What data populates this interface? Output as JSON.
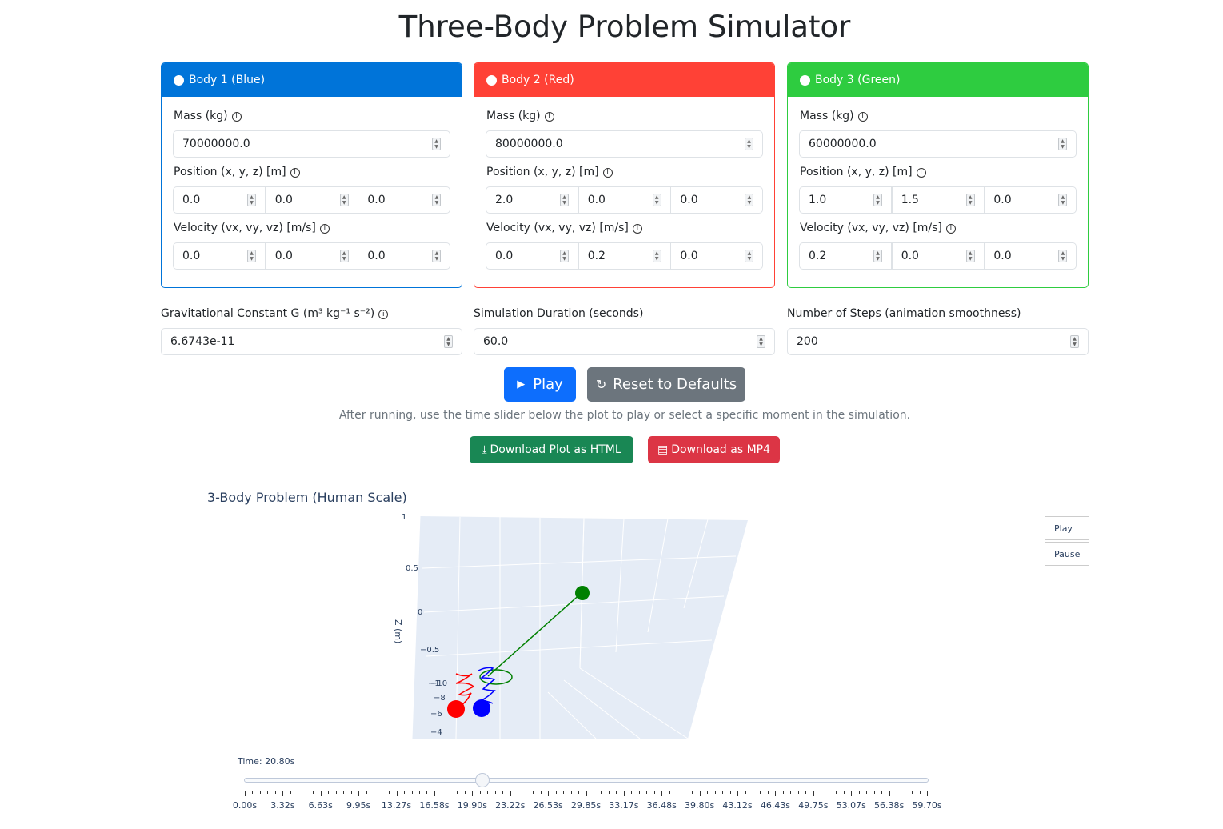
{
  "app": {
    "title": "Three-Body Problem Simulator"
  },
  "bodies": [
    {
      "header": "Body 1 (Blue)",
      "color": "#0d6efd",
      "header_bg": "#0074d9",
      "mass_label": "Mass (kg)",
      "mass": "70000000.0",
      "pos_label": "Position (x, y, z) [m]",
      "pos": [
        "0.0",
        "0.0",
        "0.0"
      ],
      "vel_label": "Velocity (vx, vy, vz) [m/s]",
      "vel": [
        "0.0",
        "0.0",
        "0.0"
      ]
    },
    {
      "header": "Body 2 (Red)",
      "color": "#ff4136",
      "header_bg": "#ff4136",
      "mass_label": "Mass (kg)",
      "mass": "80000000.0",
      "pos_label": "Position (x, y, z) [m]",
      "pos": [
        "2.0",
        "0.0",
        "0.0"
      ],
      "vel_label": "Velocity (vx, vy, vz) [m/s]",
      "vel": [
        "0.0",
        "0.2",
        "0.0"
      ]
    },
    {
      "header": "Body 3 (Green)",
      "color": "#2ecc40",
      "header_bg": "#2ecc40",
      "mass_label": "Mass (kg)",
      "mass": "60000000.0",
      "pos_label": "Position (x, y, z) [m]",
      "pos": [
        "1.0",
        "1.5",
        "0.0"
      ],
      "vel_label": "Velocity (vx, vy, vz) [m/s]",
      "vel": [
        "0.2",
        "0.0",
        "0.0"
      ]
    }
  ],
  "params": {
    "g_label": "Gravitational Constant G (m³ kg⁻¹ s⁻²)",
    "g_value": "6.6743e-11",
    "duration_label": "Simulation Duration (seconds)",
    "duration_value": "60.0",
    "steps_label": "Number of Steps (animation smoothness)",
    "steps_value": "200"
  },
  "actions": {
    "play": "Play",
    "reset": "Reset to Defaults",
    "hint": "After running, use the time slider below the plot to play or select a specific moment in the simulation.",
    "download_html": "Download Plot as HTML",
    "download_mp4": "Download as MP4",
    "play_color": "#0d6efd",
    "reset_color": "#6c757d",
    "html_color": "#198754",
    "mp4_color": "#dc3545"
  },
  "plot": {
    "title": "3-Body Problem (Human Scale)",
    "z_axis_title": "Z (m)",
    "z_ticks": [
      "1",
      "0.5",
      "0",
      "−0.5",
      "−1"
    ],
    "side_ticks": [
      "−10",
      "−8",
      "−6",
      "−4"
    ],
    "menu_play": "Play",
    "menu_pause": "Pause",
    "time_label": "Time: 20.80s",
    "slider_value_s": 20.8,
    "slider_ticks": [
      "0.00s",
      "3.32s",
      "6.63s",
      "9.95s",
      "13.27s",
      "16.58s",
      "19.90s",
      "23.22s",
      "26.53s",
      "29.85s",
      "33.17s",
      "36.48s",
      "39.80s",
      "43.12s",
      "46.43s",
      "49.75s",
      "53.07s",
      "56.38s",
      "59.70s"
    ]
  }
}
